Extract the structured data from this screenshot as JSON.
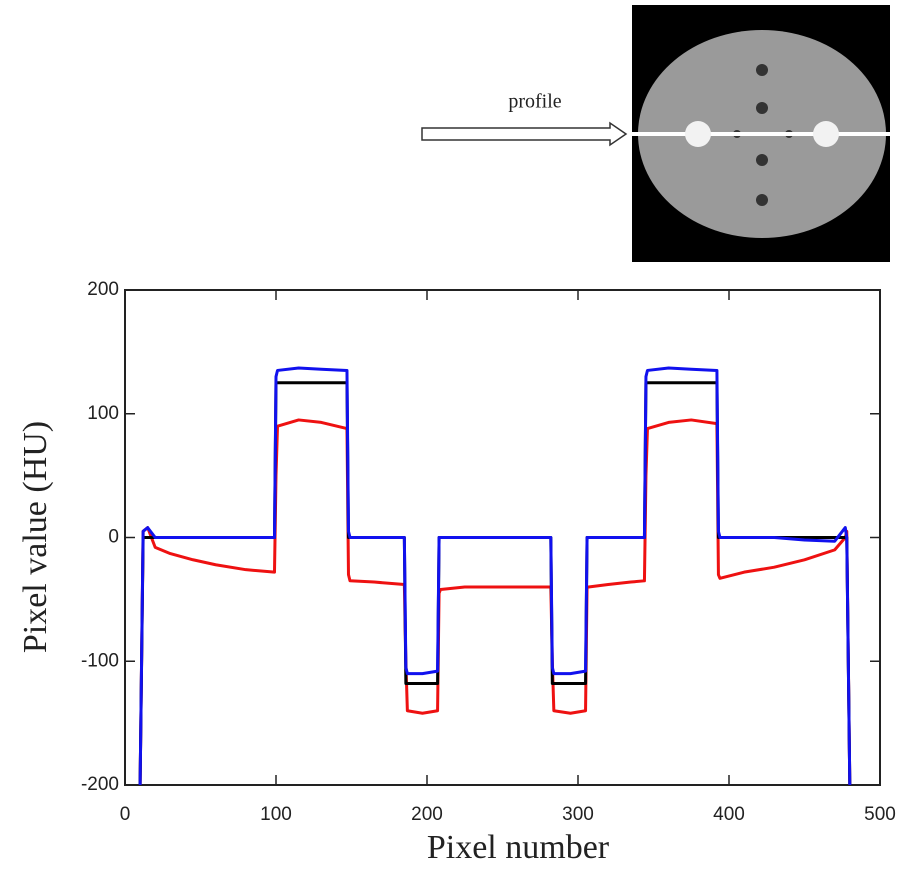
{
  "chart_data": {
    "type": "line",
    "annotation": "profile",
    "x_label": "Pixel number",
    "y_label": "Pixel value (HU)",
    "xlim": [
      0,
      500
    ],
    "xticks": [
      0,
      100,
      200,
      300,
      400,
      500
    ],
    "ylim": [
      -200,
      200
    ],
    "yticks": [
      -200,
      -100,
      0,
      100,
      200
    ],
    "x": [
      10,
      12,
      15,
      20,
      30,
      45,
      60,
      80,
      99,
      100,
      101,
      115,
      130,
      147,
      148,
      149,
      165,
      185,
      186,
      187,
      197,
      207,
      208,
      209,
      225,
      245,
      265,
      282,
      283,
      284,
      295,
      305,
      306,
      307,
      320,
      335,
      344,
      345,
      346,
      360,
      375,
      392,
      393,
      394,
      410,
      430,
      450,
      470,
      477,
      478,
      480
    ],
    "series": [
      {
        "color": "#ee1111",
        "values": [
          -200,
          5,
          8,
          -8,
          -13,
          -18,
          -22,
          -26,
          -28,
          50,
          90,
          95,
          93,
          88,
          -30,
          -35,
          -36,
          -38,
          -100,
          -140,
          -142,
          -140,
          -45,
          -42,
          -40,
          -40,
          -40,
          -40,
          -100,
          -140,
          -142,
          -140,
          -40,
          -40,
          -38,
          -36,
          -35,
          50,
          88,
          93,
          95,
          92,
          -30,
          -33,
          -28,
          -24,
          -18,
          -10,
          0,
          5,
          -200
        ]
      },
      {
        "color": "#000000",
        "values": [
          -200,
          0,
          0,
          0,
          0,
          0,
          0,
          0,
          0,
          125,
          125,
          125,
          125,
          125,
          0,
          0,
          0,
          0,
          -118,
          -118,
          -118,
          -118,
          0,
          0,
          0,
          0,
          0,
          0,
          -118,
          -118,
          -118,
          -118,
          0,
          0,
          0,
          0,
          0,
          125,
          125,
          125,
          125,
          125,
          0,
          0,
          0,
          0,
          0,
          0,
          0,
          0,
          -200
        ]
      },
      {
        "color": "#1111ee",
        "values": [
          -200,
          5,
          8,
          0,
          0,
          0,
          0,
          0,
          0,
          130,
          135,
          137,
          136,
          135,
          5,
          0,
          0,
          0,
          -105,
          -110,
          -110,
          -108,
          0,
          0,
          0,
          0,
          0,
          0,
          -105,
          -110,
          -110,
          -108,
          0,
          0,
          0,
          0,
          0,
          130,
          135,
          137,
          136,
          135,
          5,
          0,
          0,
          0,
          -2,
          -3,
          8,
          0,
          -200
        ]
      }
    ]
  }
}
